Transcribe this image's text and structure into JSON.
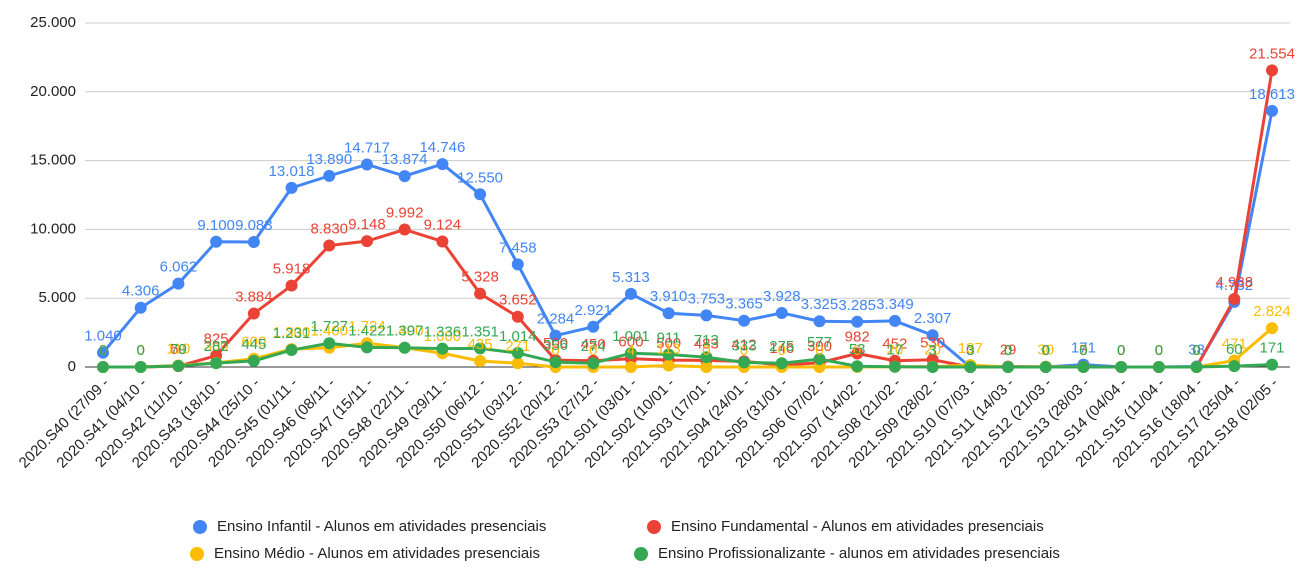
{
  "chart_data": {
    "type": "line",
    "categories": [
      "2020.S40 (27/09 -",
      "2020.S41 (04/10 -",
      "2020.S42 (11/10 -",
      "2020.S43 (18/10 -",
      "2020.S44 (25/10 -",
      "2020.S45 (01/11 -",
      "2020.S46 (08/11 -",
      "2020.S47 (15/11 -",
      "2020.S48 (22/11 -",
      "2020.S49 (29/11 -",
      "2020.S50 (06/12 -",
      "2020.S51 (03/12 -",
      "2020.S52 (20/12 -",
      "2020.S53 (27/12 -",
      "2021.S01 (03/01 -",
      "2021.S02 (10/01 -",
      "2021.S03 (17/01 -",
      "2021.S04 (24/01 -",
      "2021.S05 (31/01 -",
      "2021.S06 (07/02 -",
      "2021.S07 (14/02 -",
      "2021.S08 (21/02 -",
      "2021.S09 (28/02 -",
      "2021.S10 (07/03 -",
      "2021.S11 (14/03 -",
      "2021.S12 (21/03 -",
      "2021.S13 (28/03 -",
      "2021.S14 (04/04 -",
      "2021.S15 (11/04 -",
      "2021.S16 (18/04 -",
      "2021.S17 (25/04 -",
      "2021.S18 (02/05 -"
    ],
    "series": [
      {
        "name": "Ensino Infantil - Alunos em atividades presenciais",
        "color": "#4285f4",
        "values": [
          1040,
          4306,
          6062,
          9100,
          9083,
          13018,
          13890,
          14717,
          13874,
          14746,
          12550,
          7458,
          2284,
          2921,
          5313,
          3910,
          3753,
          3365,
          3928,
          3325,
          3285,
          3349,
          2307,
          0,
          0,
          0,
          171,
          0,
          0,
          38,
          4732,
          18613
        ],
        "value_labels": [
          "1.040",
          "4.306",
          "6.062",
          "9.100",
          "9.083",
          "13.018",
          "13.890",
          "14.717",
          "13.874",
          "14.746",
          "12.550",
          "7.458",
          "2.284",
          "2.921",
          "5.313",
          "3.910",
          "3.753",
          "3.365",
          "3.928",
          "3.325",
          "3.285",
          "3.349",
          "2.307",
          "0",
          "0",
          "0",
          "171",
          "0",
          "0",
          "38",
          "4.732",
          "18.613"
        ]
      },
      {
        "name": "Ensino Fundamental - Alunos em atividades presenciais",
        "color": "#ea4335",
        "values": [
          0,
          0,
          60,
          825,
          3884,
          5918,
          8830,
          9148,
          9992,
          9124,
          5328,
          3652,
          500,
          450,
          600,
          500,
          483,
          412,
          146,
          300,
          982,
          452,
          530,
          0,
          29,
          0,
          5,
          0,
          0,
          0,
          4938,
          21554
        ],
        "value_labels": [
          "0",
          "0",
          "60",
          "825",
          "3.884",
          "5.918",
          "8.830",
          "9.148",
          "9.992",
          "9.124",
          "5.328",
          "3.652",
          "500",
          "450",
          "600",
          "500",
          "483",
          "412",
          "146",
          "300",
          "982",
          "452",
          "530",
          "0",
          "29",
          "0",
          "5",
          "0",
          "0",
          "0",
          "4.938",
          "21.554"
        ]
      },
      {
        "name": "Ensino Médio - Alunos em atividades presenciais",
        "color": "#fbbc04",
        "values": [
          0,
          0,
          110,
          300,
          600,
          1300,
          1400,
          1724,
          1400,
          1000,
          435,
          271,
          0,
          0,
          4,
          113,
          0,
          0,
          0,
          0,
          0,
          20,
          20,
          137,
          0,
          30,
          0,
          0,
          0,
          0,
          471,
          2824
        ],
        "value_labels": [
          "0",
          "0",
          "110",
          "300",
          "600",
          "1.300",
          "1.400",
          "1.724",
          "1.400",
          "1.000",
          "435",
          "271",
          "0",
          "0",
          "4",
          "113",
          "0",
          "0",
          "0",
          "0",
          "0",
          "20",
          "20",
          "137",
          "0",
          "30",
          "0",
          "0",
          "0",
          "0",
          "471",
          "2.824"
        ]
      },
      {
        "name": "Ensino Profissionalizante - alunos em atividades presenciais",
        "color": "#34a853",
        "values": [
          0,
          0,
          79,
          282,
          445,
          1231,
          1727,
          1422,
          1397,
          1336,
          1351,
          1014,
          356,
          274,
          1001,
          911,
          713,
          333,
          275,
          577,
          53,
          17,
          3,
          3,
          0,
          0,
          0,
          0,
          0,
          0,
          60,
          171
        ],
        "value_labels": [
          "0",
          "0",
          "79",
          "282",
          "445",
          "1.231",
          "1.727",
          "1.422",
          "1.397",
          "1.336",
          "1.351",
          "1.014",
          "356",
          "274",
          "1.001",
          "911",
          "713",
          "333",
          "275",
          "577",
          "53",
          "17",
          "3",
          "3",
          "0",
          "0",
          "0",
          "0",
          "0",
          "0",
          "60",
          "171"
        ]
      }
    ],
    "ylim": [
      0,
      25000
    ],
    "yticks": [
      0,
      {
        "value": 5000,
        "label": "5.000"
      },
      {
        "value": 10000,
        "label": "10.000"
      },
      {
        "value": 15000,
        "label": "15.000"
      },
      {
        "value": 20000,
        "label": "20.000"
      },
      {
        "value": 25000,
        "label": "25.000"
      }
    ],
    "grid": true,
    "legend": "bottom"
  }
}
